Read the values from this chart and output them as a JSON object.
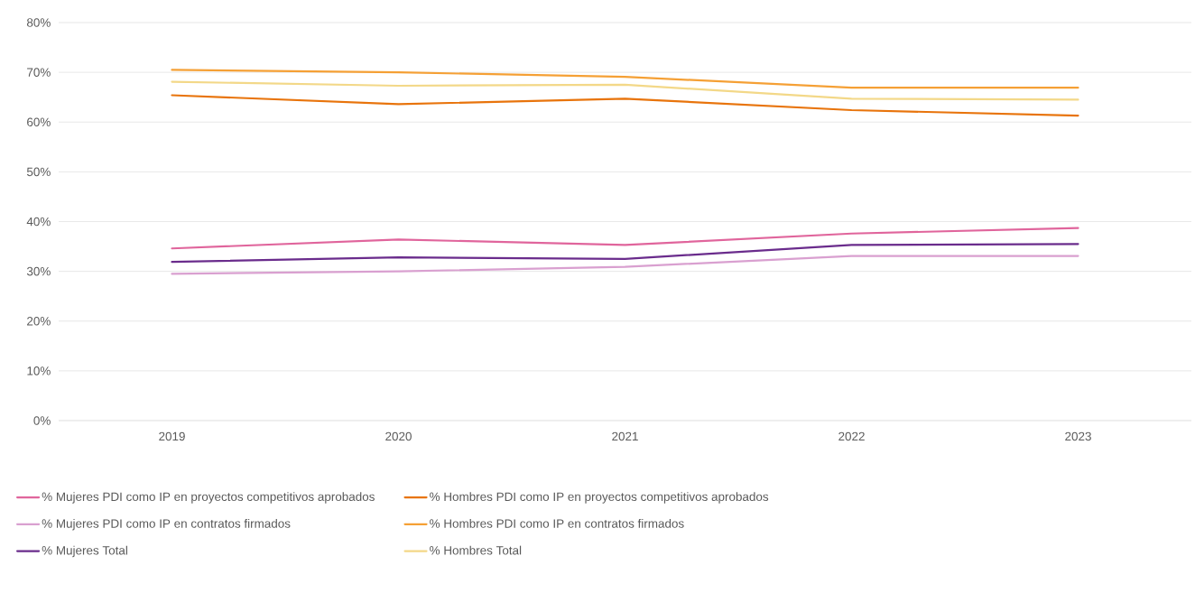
{
  "chart_data": {
    "type": "line",
    "categories": [
      "2019",
      "2020",
      "2021",
      "2022",
      "2023"
    ],
    "series": [
      {
        "name": "% Mujeres PDI como IP en proyectos competitivos aprobados",
        "color": "#e0659c",
        "values": [
          34.6,
          36.4,
          35.3,
          37.6,
          38.7
        ]
      },
      {
        "name": "% Hombres PDI como IP en proyectos competitivos aprobados",
        "color": "#e8740c",
        "values": [
          65.4,
          63.6,
          64.7,
          62.4,
          61.3
        ]
      },
      {
        "name": "% Mujeres PDI como IP en contratos firmados",
        "color": "#d9a0d0",
        "values": [
          29.5,
          30.0,
          30.9,
          33.1,
          33.1
        ]
      },
      {
        "name": "% Hombres PDI como IP en contratos firmados",
        "color": "#f5a035",
        "values": [
          70.5,
          70.0,
          69.1,
          66.9,
          66.9
        ]
      },
      {
        "name": "% Mujeres Total",
        "color": "#6a2c8c",
        "values": [
          31.9,
          32.8,
          32.5,
          35.3,
          35.5
        ]
      },
      {
        "name": "% Hombres Total",
        "color": "#f3d888",
        "values": [
          68.1,
          67.3,
          67.5,
          64.7,
          64.5
        ]
      }
    ],
    "ylim": [
      0,
      80
    ],
    "yticks": [
      {
        "value": 0,
        "label": "0%"
      },
      {
        "value": 10,
        "label": "10%"
      },
      {
        "value": 20,
        "label": "20%"
      },
      {
        "value": 30,
        "label": "30%"
      },
      {
        "value": 40,
        "label": "40%"
      },
      {
        "value": 50,
        "label": "50%"
      },
      {
        "value": 60,
        "label": "60%"
      },
      {
        "value": 70,
        "label": "70%"
      },
      {
        "value": 80,
        "label": "80%"
      }
    ],
    "grid": "y",
    "legend": "bottom",
    "marker": "none",
    "line_style": "solid"
  }
}
